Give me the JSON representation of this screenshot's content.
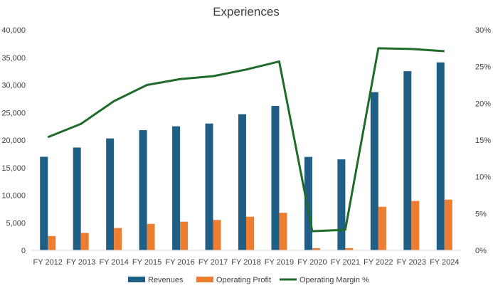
{
  "chart_data": {
    "type": "bar",
    "title": "Experiences",
    "categories": [
      "FY 2012",
      "FY 2013",
      "FY 2014",
      "FY 2015",
      "FY 2016",
      "FY 2017",
      "FY 2018",
      "FY 2019",
      "FY 2020",
      "FY 2021",
      "FY 2022",
      "FY 2023",
      "FY 2024"
    ],
    "series": [
      {
        "name": "Revenues",
        "kind": "bar",
        "axis": "left",
        "color": "#1f5f85",
        "values": [
          16970,
          18650,
          20300,
          21800,
          22500,
          23000,
          24700,
          26200,
          16950,
          16500,
          28700,
          32500,
          34100
        ]
      },
      {
        "name": "Operating Profit",
        "kind": "bar",
        "axis": "left",
        "color": "#ed7d31",
        "values": [
          2600,
          3150,
          4050,
          4800,
          5200,
          5500,
          6100,
          6800,
          400,
          400,
          7900,
          8950,
          9200
        ]
      },
      {
        "name": "Operating Margin %",
        "kind": "line",
        "axis": "right",
        "color": "#1e6b2a",
        "values": [
          15.4,
          17.2,
          20.3,
          22.5,
          23.3,
          23.7,
          24.6,
          25.7,
          2.6,
          2.8,
          27.5,
          27.4,
          27.1
        ]
      }
    ],
    "ylim": [
      0,
      40000
    ],
    "y_ticks": [
      "0",
      "5,000",
      "10,000",
      "15,000",
      "20,000",
      "25,000",
      "30,000",
      "35,000",
      "40,000"
    ],
    "y2lim": [
      0,
      30
    ],
    "y2_ticks": [
      "0%",
      "5%",
      "10%",
      "15%",
      "20%",
      "25%",
      "30%"
    ],
    "grid": false,
    "legend": "bottom"
  }
}
